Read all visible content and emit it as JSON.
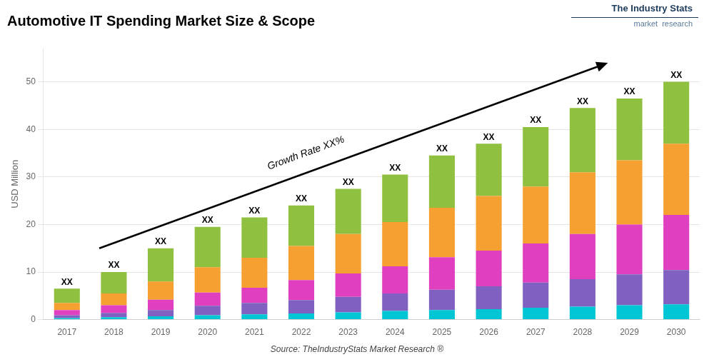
{
  "chart_data": {
    "type": "bar",
    "stacked": true,
    "title": "Automotive IT Spending Market Size & Scope",
    "ylabel": "USD Million",
    "categories": [
      2017,
      2018,
      2019,
      2020,
      2021,
      2022,
      2023,
      2024,
      2025,
      2026,
      2027,
      2028,
      2029,
      2030
    ],
    "series": [
      {
        "color": "#00c5d4",
        "values": [
          0.3,
          0.5,
          0.7,
          0.9,
          1.1,
          1.3,
          1.5,
          1.8,
          2.0,
          2.2,
          2.5,
          2.7,
          3.0,
          3.2
        ]
      },
      {
        "color": "#8060c0",
        "values": [
          0.6,
          0.9,
          1.3,
          2.0,
          2.4,
          2.8,
          3.3,
          3.7,
          4.3,
          4.8,
          5.3,
          5.8,
          6.5,
          7.2
        ]
      },
      {
        "color": "#e040c0",
        "values": [
          1.1,
          1.6,
          2.2,
          2.8,
          3.2,
          4.2,
          4.9,
          5.7,
          6.8,
          7.5,
          8.2,
          9.5,
          10.5,
          11.6
        ]
      },
      {
        "color": "#f5a030",
        "values": [
          1.5,
          2.5,
          3.8,
          5.3,
          6.3,
          7.2,
          8.3,
          9.3,
          10.4,
          11.5,
          12.0,
          13.0,
          13.5,
          15.0
        ]
      },
      {
        "color": "#90c040",
        "values": [
          3.0,
          4.5,
          7.0,
          8.5,
          8.5,
          8.5,
          9.5,
          10.0,
          11.0,
          11.0,
          12.5,
          13.5,
          13.0,
          13.0
        ]
      }
    ],
    "ylim": [
      0,
      57
    ],
    "yticks": [
      0,
      10,
      20,
      30,
      40,
      50
    ],
    "grid": true,
    "bar_labels": [
      "XX",
      "XX",
      "XX",
      "XX",
      "XX",
      "XX",
      "XX",
      "XX",
      "XX",
      "XX",
      "XX",
      "XX",
      "XX",
      "XX"
    ],
    "annotations": [
      "Growth Rate XX%"
    ],
    "source": "Source: TheIndustryStats Market Research ®",
    "logo": [
      "The Industry Stats",
      "market  research"
    ]
  }
}
